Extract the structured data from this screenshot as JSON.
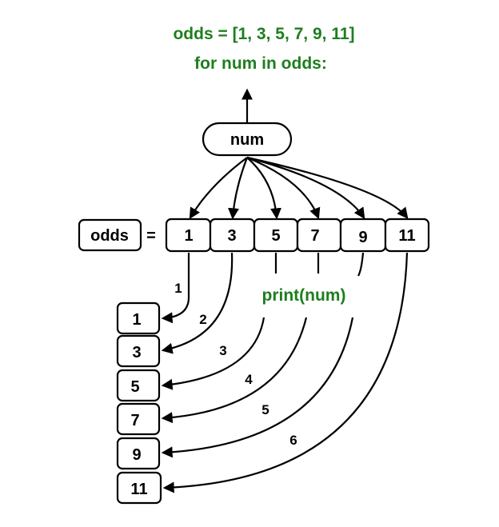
{
  "code": {
    "line1": "odds = [1, 3, 5, 7, 9, 11]",
    "line2": "for num in odds:",
    "print_stmt": "print(num)"
  },
  "variable": {
    "label": "num"
  },
  "list": {
    "name": "odds",
    "equals": "=",
    "values": [
      "1",
      "3",
      "5",
      "7",
      "9",
      "11"
    ]
  },
  "output": {
    "values": [
      "1",
      "3",
      "5",
      "7",
      "9",
      "11"
    ]
  },
  "iteration_labels": [
    "1",
    "2",
    "3",
    "4",
    "5",
    "6"
  ],
  "colors": {
    "code_text": "#1e7e1e",
    "stroke": "#000000",
    "background": "#ffffff"
  }
}
